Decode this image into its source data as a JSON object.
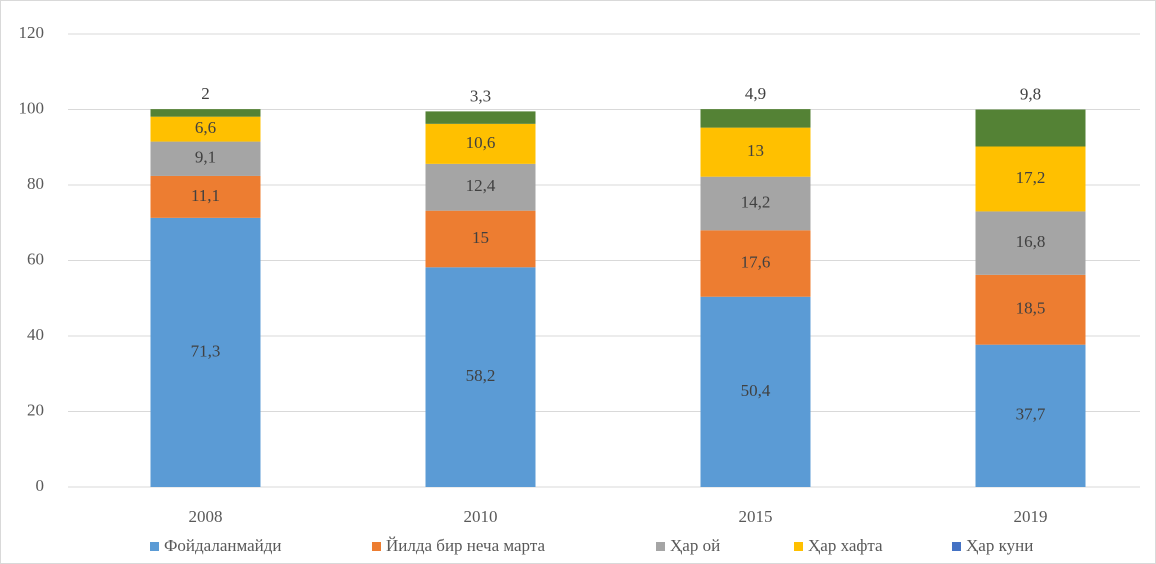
{
  "chart_data": {
    "type": "stacked_bar",
    "categories": [
      "2008",
      "2010",
      "2015",
      "2019"
    ],
    "series": [
      {
        "name": "Фойдаланмайди",
        "color": "#5b9bd5",
        "values": [
          71.3,
          58.2,
          50.4,
          37.7
        ],
        "value_labels": [
          "71,3",
          "58,2",
          "50,4",
          "37,7"
        ]
      },
      {
        "name": "Йилда бир неча марта",
        "color": "#ed7d31",
        "values": [
          11.1,
          15,
          17.6,
          18.5
        ],
        "value_labels": [
          "11,1",
          "15",
          "17,6",
          "18,5"
        ]
      },
      {
        "name": "Ҳар ой",
        "color": "#a5a5a5",
        "values": [
          9.1,
          12.4,
          14.2,
          16.8
        ],
        "value_labels": [
          "9,1",
          "12,4",
          "14,2",
          "16,8"
        ]
      },
      {
        "name": "Ҳар хафта",
        "color": "#ffc000",
        "values": [
          6.6,
          10.6,
          13,
          17.2
        ],
        "value_labels": [
          "6,6",
          "10,6",
          "13",
          "17,2"
        ]
      },
      {
        "name": "Ҳар куни",
        "color": "#548235",
        "legend_color": "#4472c4",
        "values": [
          2,
          3.3,
          4.9,
          9.8
        ],
        "value_labels": [
          "2",
          "3,3",
          "4,9",
          "9,8"
        ]
      }
    ],
    "ylim": [
      0,
      120
    ],
    "yticks": [
      0,
      20,
      40,
      60,
      80,
      100,
      120
    ],
    "grid": true,
    "legend": "bottom"
  }
}
